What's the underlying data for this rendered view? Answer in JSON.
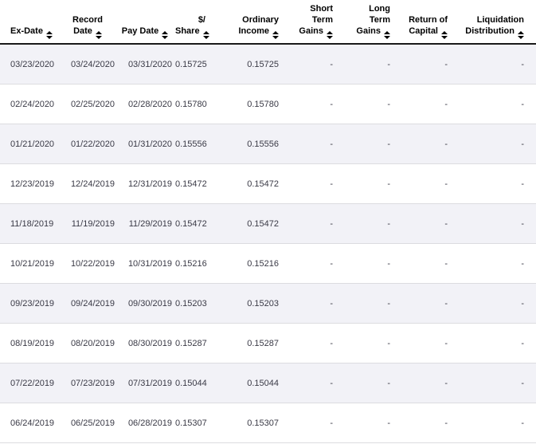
{
  "table": {
    "name": "distribution-history",
    "colors": {
      "header_text": "#000000",
      "body_text": "#3a3a46",
      "row_alt_background": "#f2f2f7",
      "header_underline": "#1a1a1a",
      "row_separator": "#dcdce0"
    },
    "columns": [
      {
        "id": "ex-date",
        "lines": [
          "Ex-Date"
        ],
        "align": "left",
        "sortable": true
      },
      {
        "id": "record-date",
        "lines": [
          "Record",
          "Date"
        ],
        "align": "center",
        "sortable": true
      },
      {
        "id": "pay-date",
        "lines": [
          "Pay Date"
        ],
        "align": "center",
        "sortable": true
      },
      {
        "id": "dollar-per-share",
        "lines": [
          "$/",
          "Share"
        ],
        "align": "right",
        "sortable": true
      },
      {
        "id": "ordinary-income",
        "lines": [
          "Ordinary",
          "Income"
        ],
        "align": "right",
        "sortable": true
      },
      {
        "id": "short-term-gains",
        "lines": [
          "Short",
          "Term",
          "Gains"
        ],
        "align": "right",
        "sortable": true
      },
      {
        "id": "long-term-gains",
        "lines": [
          "Long",
          "Term",
          "Gains"
        ],
        "align": "right",
        "sortable": true
      },
      {
        "id": "return-of-capital",
        "lines": [
          "Return of",
          "Capital"
        ],
        "align": "right",
        "sortable": true
      },
      {
        "id": "liquidation-distribution",
        "lines": [
          "Liquidation",
          "Distribution"
        ],
        "align": "right",
        "sortable": true
      }
    ],
    "rows": [
      [
        "03/23/2020",
        "03/24/2020",
        "03/31/2020",
        "0.15725",
        "0.15725",
        "-",
        "-",
        "-",
        "-"
      ],
      [
        "02/24/2020",
        "02/25/2020",
        "02/28/2020",
        "0.15780",
        "0.15780",
        "-",
        "-",
        "-",
        "-"
      ],
      [
        "01/21/2020",
        "01/22/2020",
        "01/31/2020",
        "0.15556",
        "0.15556",
        "-",
        "-",
        "-",
        "-"
      ],
      [
        "12/23/2019",
        "12/24/2019",
        "12/31/2019",
        "0.15472",
        "0.15472",
        "-",
        "-",
        "-",
        "-"
      ],
      [
        "11/18/2019",
        "11/19/2019",
        "11/29/2019",
        "0.15472",
        "0.15472",
        "-",
        "-",
        "-",
        "-"
      ],
      [
        "10/21/2019",
        "10/22/2019",
        "10/31/2019",
        "0.15216",
        "0.15216",
        "-",
        "-",
        "-",
        "-"
      ],
      [
        "09/23/2019",
        "09/24/2019",
        "09/30/2019",
        "0.15203",
        "0.15203",
        "-",
        "-",
        "-",
        "-"
      ],
      [
        "08/19/2019",
        "08/20/2019",
        "08/30/2019",
        "0.15287",
        "0.15287",
        "-",
        "-",
        "-",
        "-"
      ],
      [
        "07/22/2019",
        "07/23/2019",
        "07/31/2019",
        "0.15044",
        "0.15044",
        "-",
        "-",
        "-",
        "-"
      ],
      [
        "06/24/2019",
        "06/25/2019",
        "06/28/2019",
        "0.15307",
        "0.15307",
        "-",
        "-",
        "-",
        "-"
      ]
    ]
  }
}
